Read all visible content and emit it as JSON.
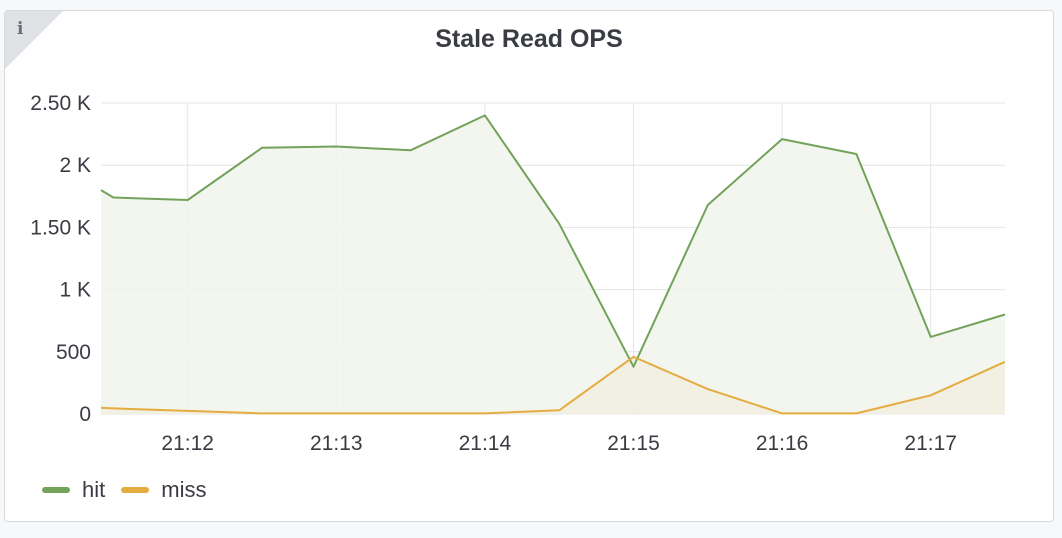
{
  "panel": {
    "title": "Stale Read OPS",
    "info_glyph": "i"
  },
  "chart_data": {
    "type": "area",
    "title": "Stale Read OPS",
    "xlabel": "",
    "ylabel": "",
    "x": [
      "21:11:25",
      "21:11:30",
      "21:12:00",
      "21:12:30",
      "21:13:00",
      "21:13:30",
      "21:14:00",
      "21:14:30",
      "21:15:00",
      "21:15:30",
      "21:16:00",
      "21:16:30",
      "21:17:00",
      "21:17:30"
    ],
    "x_ticks": [
      "21:12",
      "21:13",
      "21:14",
      "21:15",
      "21:16",
      "21:17"
    ],
    "y_ticks": [
      "0",
      "500",
      "1 K",
      "1.50 K",
      "2 K",
      "2.50 K"
    ],
    "ylim": [
      0,
      2500
    ],
    "grid": true,
    "legend_position": "bottom-left",
    "series": [
      {
        "name": "hit",
        "color": "#73a25b",
        "fill": "#f0f5ec",
        "values": [
          1800,
          1740,
          1720,
          2140,
          2150,
          2120,
          2400,
          1530,
          380,
          1680,
          2210,
          2090,
          620,
          800
        ]
      },
      {
        "name": "miss",
        "color": "#e5ac40",
        "fill": "#f2efdf",
        "values": [
          50,
          45,
          25,
          5,
          5,
          5,
          5,
          30,
          460,
          200,
          5,
          5,
          150,
          420
        ]
      }
    ]
  }
}
